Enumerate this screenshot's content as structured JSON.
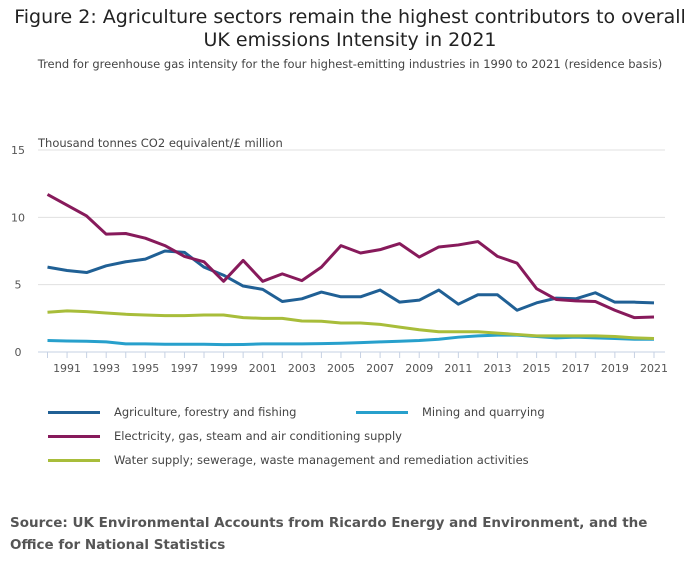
{
  "chart_data": {
    "type": "line",
    "title": "Figure 2: Agriculture sectors remain the highest contributors to overall UK emissions Intensity in 2021",
    "subtitle": "Trend for greenhouse gas intensity for the four highest-emitting industries in 1990 to 2021 (residence basis)",
    "ylabel": "Thousand tonnes CO2 equivalent/£ million",
    "xlabel": "",
    "ylim": [
      0,
      15
    ],
    "yticks": [
      "0",
      "5",
      "10",
      "15"
    ],
    "xlim": [
      1990,
      2021
    ],
    "xticks": [
      "1991",
      "1993",
      "1995",
      "1997",
      "1999",
      "2001",
      "2003",
      "2005",
      "2007",
      "2009",
      "2011",
      "2013",
      "2015",
      "2017",
      "2019",
      "2021"
    ],
    "grid": true,
    "legend_position": "bottom",
    "x": [
      1990,
      1991,
      1992,
      1993,
      1994,
      1995,
      1996,
      1997,
      1998,
      1999,
      2000,
      2001,
      2002,
      2003,
      2004,
      2005,
      2006,
      2007,
      2008,
      2009,
      2010,
      2011,
      2012,
      2013,
      2014,
      2015,
      2016,
      2017,
      2018,
      2019,
      2020,
      2021
    ],
    "series": [
      {
        "name": "Agriculture, forestry and fishing",
        "color": "#206095",
        "values": [
          6.3,
          6.05,
          5.9,
          6.4,
          6.7,
          6.9,
          7.5,
          7.4,
          6.3,
          5.7,
          4.9,
          4.65,
          3.75,
          3.95,
          4.45,
          4.1,
          4.1,
          4.6,
          3.7,
          3.85,
          4.6,
          3.55,
          4.25,
          4.25,
          3.1,
          3.65,
          4.0,
          3.95,
          4.4,
          3.7,
          3.7,
          3.65
        ]
      },
      {
        "name": "Mining and quarrying",
        "color": "#27a0cc",
        "values": [
          0.85,
          0.82,
          0.8,
          0.75,
          0.6,
          0.6,
          0.58,
          0.58,
          0.58,
          0.55,
          0.56,
          0.6,
          0.6,
          0.6,
          0.62,
          0.65,
          0.7,
          0.75,
          0.8,
          0.85,
          0.95,
          1.1,
          1.2,
          1.25,
          1.25,
          1.15,
          1.05,
          1.1,
          1.05,
          1.0,
          0.95,
          0.95
        ]
      },
      {
        "name": "Electricity, gas, steam and air conditioning supply",
        "color": "#871a5b",
        "values": [
          11.7,
          10.9,
          10.1,
          8.75,
          8.8,
          8.45,
          7.9,
          7.1,
          6.7,
          5.25,
          6.8,
          5.25,
          5.8,
          5.3,
          6.3,
          7.9,
          7.35,
          7.6,
          8.05,
          7.05,
          7.8,
          7.95,
          8.2,
          7.1,
          6.6,
          4.7,
          3.9,
          3.8,
          3.75,
          3.1,
          2.55,
          2.6
        ]
      },
      {
        "name": "Water supply; sewerage, waste management and remediation activities",
        "color": "#a8bd3a",
        "values": [
          2.95,
          3.05,
          3.0,
          2.9,
          2.8,
          2.75,
          2.7,
          2.7,
          2.75,
          2.75,
          2.55,
          2.5,
          2.5,
          2.3,
          2.28,
          2.15,
          2.15,
          2.05,
          1.85,
          1.65,
          1.5,
          1.5,
          1.5,
          1.4,
          1.3,
          1.2,
          1.2,
          1.2,
          1.2,
          1.15,
          1.05,
          1.0
        ]
      }
    ]
  },
  "source": "Source: UK Environmental Accounts from Ricardo Energy and Environment, and the Office for National Statistics"
}
